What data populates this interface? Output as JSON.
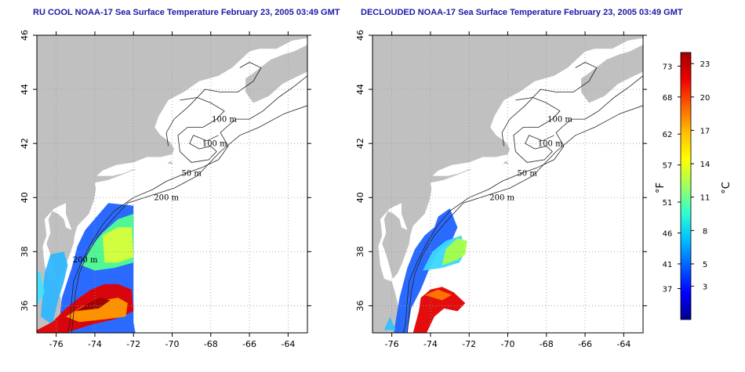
{
  "titles": {
    "left": "RU COOL NOAA-17 Sea Surface Temperature February 23, 2005 03:49 GMT",
    "right": "DECLOUDED NOAA-17 Sea Surface Temperature February 23, 2005 03:49 GMT"
  },
  "map": {
    "lon_range": [
      -77,
      -63
    ],
    "lat_range": [
      35,
      46
    ],
    "lon_ticks": [
      -76,
      -74,
      -72,
      -70,
      -68,
      -66,
      -64
    ],
    "lat_ticks": [
      36,
      38,
      40,
      42,
      44,
      46
    ],
    "lon_tick_labels": [
      "-76",
      "-74",
      "-72",
      "-70",
      "-68",
      "-66",
      "-64"
    ],
    "lat_tick_labels": [
      "36",
      "38",
      "40",
      "42",
      "44",
      "46"
    ],
    "grid": "dotted",
    "land_color": "#c0c0c0",
    "water_color": "#ffffff",
    "contour_labels": [
      "100 m",
      "100 m",
      "50 m",
      "200 m",
      "200 m"
    ],
    "contour_label_points": [
      {
        "lon": -67.3,
        "lat": 42.8
      },
      {
        "lon": -67.8,
        "lat": 41.9
      },
      {
        "lon": -69.0,
        "lat": 40.8
      },
      {
        "lon": -70.3,
        "lat": 39.9
      },
      {
        "lon": -74.5,
        "lat": 37.6
      }
    ],
    "contour_labels_right": [
      "100 m",
      "100 m",
      "50 m",
      "200 m"
    ]
  },
  "colorbar": {
    "fahrenheit_labels": [
      "73",
      "68",
      "62",
      "57",
      "51",
      "46",
      "41",
      "37"
    ],
    "celsius_labels": [
      "23",
      "20",
      "17",
      "14",
      "11",
      "8",
      "5",
      "3"
    ],
    "celsius_values": [
      23,
      20,
      17,
      14,
      11,
      8,
      5,
      3
    ],
    "fahrenheit_values": [
      73,
      68,
      62,
      57,
      51,
      46,
      41,
      37
    ],
    "range_celsius": [
      0,
      24
    ],
    "unit_left": "°F",
    "unit_right": "°C",
    "colors": [
      "#00008f",
      "#0000ff",
      "#0060ff",
      "#00bfff",
      "#30ffcf",
      "#a0ff60",
      "#ffff00",
      "#ffbf00",
      "#ff6000",
      "#ef0000",
      "#9f0000"
    ]
  }
}
